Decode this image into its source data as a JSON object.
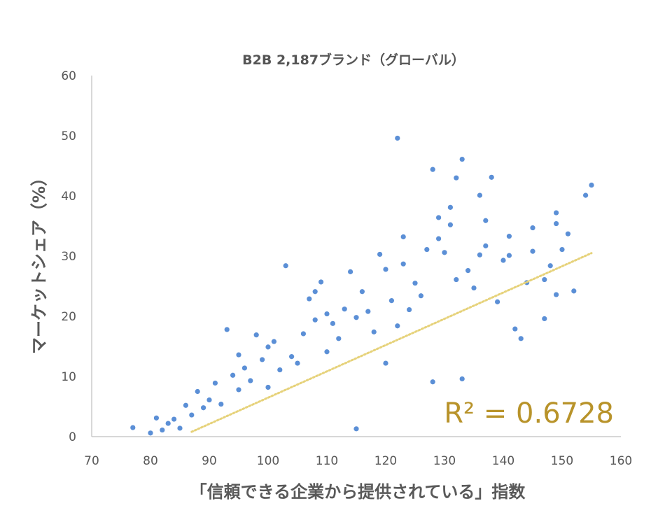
{
  "chart_data": {
    "type": "scatter",
    "title": "B2B 2,187ブランド（グローバル）",
    "xlabel": "「信頼できる企業から提供されている」指数",
    "ylabel": "マーケットシェア（%）",
    "xlim": [
      70,
      160
    ],
    "ylim": [
      0,
      60
    ],
    "xticks": [
      "70",
      "80",
      "90",
      "100",
      "110",
      "120",
      "130",
      "140",
      "150",
      "160"
    ],
    "yticks": [
      "0",
      "10",
      "20",
      "30",
      "40",
      "50",
      "60"
    ],
    "grid": false,
    "annotation": "R² = 0.6728",
    "trendline": {
      "style": "dotted",
      "x": [
        87,
        155
      ],
      "y": [
        0.8,
        30.5
      ]
    },
    "colors": {
      "points": "#5b8fd6",
      "trendline": "#e6d27a",
      "annotation": "#b8932a",
      "axis": "#bfbfbf"
    },
    "series": [
      {
        "points": [
          [
            77,
            1.5
          ],
          [
            80,
            0.6
          ],
          [
            81,
            3.1
          ],
          [
            82,
            1.1
          ],
          [
            83,
            2.2
          ],
          [
            84,
            2.9
          ],
          [
            85,
            1.4
          ],
          [
            86,
            5.2
          ],
          [
            87,
            3.6
          ],
          [
            88,
            7.5
          ],
          [
            89,
            4.8
          ],
          [
            90,
            6.1
          ],
          [
            91,
            8.9
          ],
          [
            92,
            5.4
          ],
          [
            93,
            17.8
          ],
          [
            94,
            10.2
          ],
          [
            95,
            13.6
          ],
          [
            95,
            7.8
          ],
          [
            96,
            11.4
          ],
          [
            97,
            9.3
          ],
          [
            98,
            16.9
          ],
          [
            99,
            12.8
          ],
          [
            100,
            14.9
          ],
          [
            100,
            8.2
          ],
          [
            101,
            15.8
          ],
          [
            102,
            11.1
          ],
          [
            103,
            28.4
          ],
          [
            104,
            13.3
          ],
          [
            105,
            12.2
          ],
          [
            106,
            17.1
          ],
          [
            107,
            22.9
          ],
          [
            108,
            19.4
          ],
          [
            108,
            24.1
          ],
          [
            109,
            25.7
          ],
          [
            110,
            20.4
          ],
          [
            110,
            14.1
          ],
          [
            111,
            18.8
          ],
          [
            112,
            16.3
          ],
          [
            113,
            21.2
          ],
          [
            114,
            27.4
          ],
          [
            115,
            19.8
          ],
          [
            115,
            1.3
          ],
          [
            116,
            24.1
          ],
          [
            117,
            20.8
          ],
          [
            118,
            17.4
          ],
          [
            119,
            30.3
          ],
          [
            120,
            27.8
          ],
          [
            120,
            12.2
          ],
          [
            121,
            22.6
          ],
          [
            122,
            49.6
          ],
          [
            122,
            18.4
          ],
          [
            123,
            33.2
          ],
          [
            123,
            28.7
          ],
          [
            124,
            21.1
          ],
          [
            125,
            25.5
          ],
          [
            126,
            23.4
          ],
          [
            127,
            31.1
          ],
          [
            128,
            44.4
          ],
          [
            128,
            9.1
          ],
          [
            129,
            32.9
          ],
          [
            129,
            36.4
          ],
          [
            130,
            30.6
          ],
          [
            131,
            38.1
          ],
          [
            131,
            35.2
          ],
          [
            132,
            43.0
          ],
          [
            132,
            26.1
          ],
          [
            133,
            46.1
          ],
          [
            133,
            9.6
          ],
          [
            134,
            27.6
          ],
          [
            135,
            24.7
          ],
          [
            136,
            40.1
          ],
          [
            136,
            30.2
          ],
          [
            137,
            35.9
          ],
          [
            137,
            31.7
          ],
          [
            138,
            43.1
          ],
          [
            139,
            22.4
          ],
          [
            140,
            29.3
          ],
          [
            141,
            33.3
          ],
          [
            141,
            30.1
          ],
          [
            142,
            17.9
          ],
          [
            143,
            16.3
          ],
          [
            144,
            25.6
          ],
          [
            145,
            34.7
          ],
          [
            145,
            30.8
          ],
          [
            147,
            19.6
          ],
          [
            147,
            26.1
          ],
          [
            148,
            28.4
          ],
          [
            149,
            37.2
          ],
          [
            149,
            35.4
          ],
          [
            149,
            23.6
          ],
          [
            150,
            31.1
          ],
          [
            151,
            33.7
          ],
          [
            152,
            24.2
          ],
          [
            154,
            40.1
          ],
          [
            155,
            41.8
          ]
        ]
      }
    ]
  }
}
